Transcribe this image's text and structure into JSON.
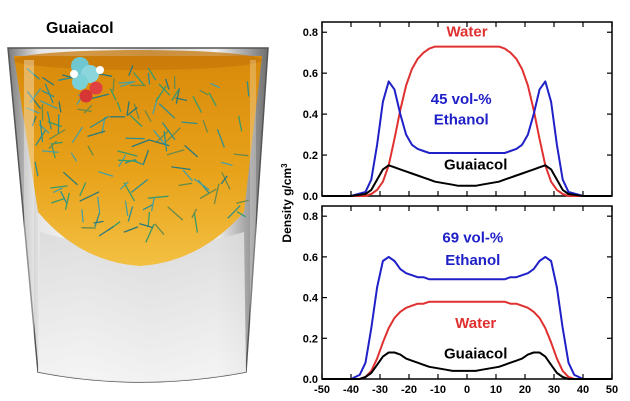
{
  "illustration": {
    "title": "Guaiacol"
  },
  "chart_data": {
    "type": "line",
    "ylabel": "Density g/cm",
    "ylabel_sup": "3",
    "xlim": [
      -50,
      50
    ],
    "xticks": [
      "-50",
      "-40",
      "-30",
      "-20",
      "-10",
      "0",
      "10",
      "20",
      "30",
      "40",
      "50"
    ],
    "colors": {
      "Water": "#e03030",
      "Ethanol": "#2020c8",
      "Guaiacol": "#000000"
    },
    "panels": [
      {
        "ylim": [
          0,
          0.85
        ],
        "yticks": [
          "0.0",
          "0.2",
          "0.4",
          "0.6",
          "0.8"
        ],
        "labels": [
          {
            "text": "Water",
            "color": "#e03030",
            "x": 0,
            "y": 0.78
          },
          {
            "text": "45 vol-%",
            "color": "#2020c8",
            "x": -2,
            "y": 0.45
          },
          {
            "text": "Ethanol",
            "color": "#2020c8",
            "x": -2,
            "y": 0.35
          },
          {
            "text": "Guaiacol",
            "color": "#000000",
            "x": 3,
            "y": 0.13
          }
        ],
        "series": [
          {
            "name": "Water",
            "color": "#e03030",
            "x": [
              -50,
              -40,
              -35,
              -33,
              -31,
              -29,
              -27,
              -25,
              -23,
              -21,
              -19,
              -17,
              -15,
              -13,
              -11,
              -9,
              -7,
              -5,
              -3,
              -1,
              0,
              1,
              3,
              5,
              7,
              9,
              11,
              13,
              15,
              17,
              19,
              21,
              23,
              25,
              27,
              29,
              31,
              33,
              35,
              40,
              50
            ],
            "y": [
              0,
              0,
              0,
              0.01,
              0.03,
              0.07,
              0.15,
              0.28,
              0.42,
              0.54,
              0.62,
              0.67,
              0.7,
              0.72,
              0.73,
              0.73,
              0.73,
              0.73,
              0.73,
              0.73,
              0.73,
              0.73,
              0.73,
              0.73,
              0.73,
              0.73,
              0.73,
              0.72,
              0.7,
              0.67,
              0.62,
              0.54,
              0.42,
              0.28,
              0.15,
              0.07,
              0.03,
              0.01,
              0,
              0,
              0
            ]
          },
          {
            "name": "Ethanol",
            "color": "#2020c8",
            "x": [
              -50,
              -40,
              -35,
              -33,
              -31,
              -29,
              -27,
              -25,
              -23,
              -21,
              -19,
              -17,
              -15,
              -13,
              -11,
              -9,
              -7,
              -5,
              -3,
              -1,
              0,
              1,
              3,
              5,
              7,
              9,
              11,
              13,
              15,
              17,
              19,
              21,
              23,
              25,
              27,
              29,
              31,
              33,
              35,
              40,
              50
            ],
            "y": [
              0,
              0,
              0.02,
              0.08,
              0.25,
              0.46,
              0.56,
              0.52,
              0.4,
              0.3,
              0.25,
              0.23,
              0.22,
              0.21,
              0.21,
              0.21,
              0.21,
              0.21,
              0.21,
              0.21,
              0.21,
              0.21,
              0.21,
              0.21,
              0.21,
              0.21,
              0.21,
              0.21,
              0.22,
              0.23,
              0.25,
              0.3,
              0.4,
              0.52,
              0.56,
              0.46,
              0.25,
              0.08,
              0.02,
              0,
              0
            ]
          },
          {
            "name": "Guaiacol",
            "color": "#000000",
            "x": [
              -50,
              -40,
              -35,
              -33,
              -31,
              -29,
              -27,
              -25,
              -23,
              -21,
              -19,
              -17,
              -15,
              -13,
              -11,
              -9,
              -7,
              -5,
              -3,
              -1,
              0,
              1,
              3,
              5,
              7,
              9,
              11,
              13,
              15,
              17,
              19,
              21,
              23,
              25,
              27,
              29,
              31,
              33,
              35,
              40,
              50
            ],
            "y": [
              0,
              0,
              0.01,
              0.03,
              0.08,
              0.13,
              0.15,
              0.14,
              0.13,
              0.12,
              0.11,
              0.1,
              0.09,
              0.08,
              0.07,
              0.065,
              0.06,
              0.055,
              0.05,
              0.05,
              0.05,
              0.05,
              0.05,
              0.055,
              0.06,
              0.065,
              0.07,
              0.08,
              0.09,
              0.1,
              0.11,
              0.12,
              0.13,
              0.14,
              0.15,
              0.13,
              0.08,
              0.03,
              0.01,
              0,
              0
            ]
          }
        ]
      },
      {
        "ylim": [
          0,
          0.85
        ],
        "yticks": [
          "0.0",
          "0.2",
          "0.4",
          "0.6",
          "0.8"
        ],
        "labels": [
          {
            "text": "69 vol-%",
            "color": "#2020c8",
            "x": 2,
            "y": 0.67
          },
          {
            "text": "Ethanol",
            "color": "#2020c8",
            "x": 2,
            "y": 0.56
          },
          {
            "text": "Water",
            "color": "#e03030",
            "x": 3,
            "y": 0.25
          },
          {
            "text": "Guaiacol",
            "color": "#000000",
            "x": 3,
            "y": 0.1
          }
        ],
        "series": [
          {
            "name": "Ethanol",
            "color": "#2020c8",
            "x": [
              -50,
              -40,
              -37,
              -35,
              -33,
              -31,
              -29,
              -27,
              -25,
              -23,
              -21,
              -19,
              -17,
              -15,
              -13,
              -11,
              -9,
              -7,
              -5,
              -3,
              -1,
              0,
              1,
              3,
              5,
              7,
              9,
              11,
              13,
              15,
              17,
              19,
              21,
              23,
              25,
              27,
              29,
              31,
              33,
              35,
              37,
              40,
              50
            ],
            "y": [
              0,
              0,
              0.02,
              0.08,
              0.25,
              0.45,
              0.58,
              0.6,
              0.58,
              0.54,
              0.52,
              0.51,
              0.5,
              0.5,
              0.49,
              0.49,
              0.49,
              0.49,
              0.49,
              0.49,
              0.49,
              0.49,
              0.49,
              0.49,
              0.49,
              0.49,
              0.49,
              0.49,
              0.49,
              0.5,
              0.5,
              0.51,
              0.52,
              0.54,
              0.58,
              0.6,
              0.58,
              0.45,
              0.25,
              0.08,
              0.02,
              0,
              0
            ]
          },
          {
            "name": "Water",
            "color": "#e03030",
            "x": [
              -50,
              -40,
              -37,
              -35,
              -33,
              -31,
              -29,
              -27,
              -25,
              -23,
              -21,
              -19,
              -17,
              -15,
              -13,
              -11,
              -9,
              -7,
              -5,
              -3,
              -1,
              0,
              1,
              3,
              5,
              7,
              9,
              11,
              13,
              15,
              17,
              19,
              21,
              23,
              25,
              27,
              29,
              31,
              33,
              35,
              37,
              40,
              50
            ],
            "y": [
              0,
              0,
              0,
              0.01,
              0.04,
              0.1,
              0.18,
              0.25,
              0.3,
              0.33,
              0.35,
              0.36,
              0.37,
              0.37,
              0.38,
              0.38,
              0.38,
              0.38,
              0.38,
              0.38,
              0.38,
              0.38,
              0.38,
              0.38,
              0.38,
              0.38,
              0.38,
              0.38,
              0.38,
              0.37,
              0.37,
              0.36,
              0.35,
              0.33,
              0.3,
              0.25,
              0.18,
              0.1,
              0.04,
              0.01,
              0,
              0,
              0
            ]
          },
          {
            "name": "Guaiacol",
            "color": "#000000",
            "x": [
              -50,
              -40,
              -37,
              -35,
              -33,
              -31,
              -29,
              -27,
              -25,
              -23,
              -21,
              -19,
              -17,
              -15,
              -13,
              -11,
              -9,
              -7,
              -5,
              -3,
              -1,
              0,
              1,
              3,
              5,
              7,
              9,
              11,
              13,
              15,
              17,
              19,
              21,
              23,
              25,
              27,
              29,
              31,
              33,
              35,
              37,
              40,
              50
            ],
            "y": [
              0,
              0,
              0,
              0.01,
              0.03,
              0.07,
              0.11,
              0.13,
              0.13,
              0.12,
              0.1,
              0.09,
              0.08,
              0.07,
              0.06,
              0.055,
              0.05,
              0.045,
              0.04,
              0.04,
              0.04,
              0.04,
              0.04,
              0.04,
              0.045,
              0.05,
              0.055,
              0.06,
              0.07,
              0.08,
              0.09,
              0.1,
              0.12,
              0.13,
              0.13,
              0.11,
              0.07,
              0.03,
              0.01,
              0,
              0,
              0,
              0
            ]
          }
        ]
      }
    ]
  }
}
